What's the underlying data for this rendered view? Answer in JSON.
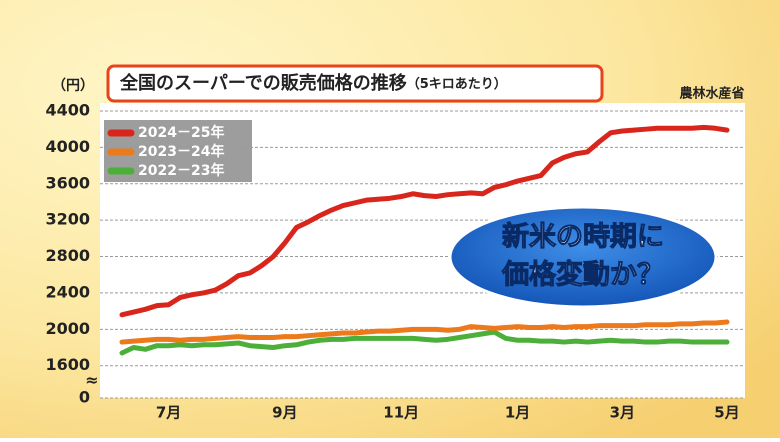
{
  "chart_data": {
    "type": "line",
    "title": "全国のスーパーでの販売価格の推移",
    "subtitle": "（5キロあたり）",
    "y_unit": "（円）",
    "source": "農林水産省",
    "annotation": [
      "新米の時期に",
      "価格変動か？"
    ],
    "categories": [
      null,
      null,
      null,
      null,
      "7月",
      null,
      null,
      null,
      null,
      null,
      null,
      null,
      null,
      null,
      "9月",
      null,
      null,
      null,
      null,
      null,
      null,
      null,
      null,
      null,
      "11月",
      null,
      null,
      null,
      null,
      null,
      null,
      null,
      null,
      null,
      "1月",
      null,
      null,
      null,
      null,
      null,
      null,
      null,
      null,
      "3月",
      null,
      null,
      null,
      null,
      null,
      null,
      null,
      null,
      "5月"
    ],
    "ylim": [
      0,
      4400
    ],
    "yticks": [
      0,
      1600,
      2000,
      2400,
      2800,
      3200,
      3600,
      4000,
      4400
    ],
    "axis_break": [
      0,
      1300
    ],
    "grid": true,
    "legend": "upper left",
    "series": [
      {
        "name": "2024－25年",
        "color": "#d9261c",
        "values": [
          2160,
          2190,
          2220,
          2260,
          2270,
          2350,
          2380,
          2400,
          2430,
          2500,
          2590,
          2620,
          2700,
          2800,
          2950,
          3120,
          3180,
          3250,
          3310,
          3360,
          3390,
          3420,
          3430,
          3440,
          3460,
          3490,
          3470,
          3460,
          3480,
          3490,
          3500,
          3490,
          3560,
          3590,
          3630,
          3660,
          3690,
          3830,
          3890,
          3930,
          3950,
          4060,
          4160,
          4180,
          4190,
          4200,
          4210,
          4210,
          4210,
          4210,
          4220,
          4210,
          4190
        ]
      },
      {
        "name": "2023－24年",
        "color": "#ec7a1c",
        "values": [
          1860,
          1870,
          1880,
          1890,
          1890,
          1880,
          1890,
          1890,
          1900,
          1910,
          1920,
          1910,
          1910,
          1910,
          1920,
          1920,
          1930,
          1940,
          1950,
          1960,
          1960,
          1970,
          1980,
          1980,
          1990,
          2000,
          2000,
          2000,
          1990,
          2000,
          2030,
          2020,
          2010,
          2020,
          2030,
          2020,
          2020,
          2030,
          2020,
          2030,
          2030,
          2040,
          2040,
          2040,
          2040,
          2050,
          2050,
          2050,
          2060,
          2060,
          2070,
          2070,
          2080
        ]
      },
      {
        "name": "2022－23年",
        "color": "#4caf3a",
        "values": [
          1740,
          1800,
          1780,
          1820,
          1820,
          1830,
          1820,
          1830,
          1830,
          1840,
          1850,
          1820,
          1810,
          1800,
          1820,
          1830,
          1860,
          1880,
          1890,
          1890,
          1900,
          1900,
          1900,
          1900,
          1900,
          1900,
          1890,
          1880,
          1890,
          1910,
          1930,
          1950,
          1970,
          1900,
          1880,
          1880,
          1870,
          1870,
          1860,
          1870,
          1860,
          1870,
          1880,
          1870,
          1870,
          1860,
          1860,
          1870,
          1870,
          1860,
          1860,
          1860,
          1860
        ]
      }
    ]
  }
}
